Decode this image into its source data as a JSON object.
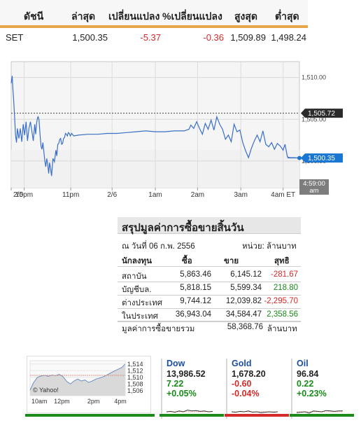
{
  "index_table": {
    "headers": [
      "ดัชนี",
      "ล่าสุด",
      "เปลี่ยนแปลง",
      "%เปลี่ยนแปลง",
      "สูงสุด",
      "ต่ำสุด"
    ],
    "row": {
      "name": "SET",
      "last": "1,500.35",
      "change": "-5.37",
      "pct_change": "-0.36",
      "high": "1,509.89",
      "low": "1,498.24"
    }
  },
  "chart_data": [
    {
      "type": "line",
      "title": "",
      "x_ticks": [
        "2/5",
        "10pm",
        "11pm",
        "2/6",
        "1am",
        "2am",
        "3am",
        "4am ET"
      ],
      "y_ticks": [
        "1,510.00",
        "1,505.00",
        "1,500.00"
      ],
      "ylim": [
        1496.8,
        1511.9
      ],
      "prev_close_label": "1,505.72",
      "last_label": "1,500.35",
      "time_label": "4:59:00 am",
      "grid": true,
      "series": [
        {
          "x": [
            0.0,
            0.2,
            0.35,
            0.5,
            0.7,
            0.9,
            1.1,
            1.3,
            1.6,
            1.9,
            2.2,
            2.5,
            2.8,
            3.1,
            3.4,
            3.7,
            4.0,
            4.3,
            4.6,
            4.9,
            5.1,
            5.3,
            5.5,
            5.6,
            5.8,
            6.0,
            6.2,
            6.4,
            6.6,
            6.8,
            7.0,
            7.2,
            7.4,
            7.6,
            7.8,
            8.0,
            8.2,
            8.4,
            8.7,
            9.0,
            9.3,
            9.5,
            9.7,
            9.9,
            10.1,
            10.3,
            10.5,
            10.7,
            10.9,
            11.1,
            11.3,
            11.5,
            11.7,
            11.9,
            12.1,
            12.3,
            12.6,
            13.0,
            14.0,
            16.0,
            18.0,
            20.0,
            22.0,
            24.0,
            26.0,
            28.0,
            30.0,
            32.0,
            34.0,
            36.0,
            37.0,
            37.4,
            38.0,
            38.6,
            39.2,
            39.8,
            40.4,
            41.0,
            41.6,
            42.2,
            42.8,
            43.4,
            44.0,
            44.6,
            45.2,
            45.8,
            46.4,
            47.0,
            47.6,
            48.2,
            48.8,
            49.4,
            50.0,
            50.6,
            51.2,
            51.8,
            52.4,
            53.0,
            53.6,
            54.2,
            54.8,
            55.4,
            56.0,
            56.6,
            57.0,
            57.5,
            58.0,
            59.0,
            60.0
          ],
          "values": [
            1509.3,
            1510.2,
            1508.6,
            1507.5,
            1505.4,
            1503.1,
            1502.2,
            1503.9,
            1502.7,
            1503.9,
            1502.3,
            1504.4,
            1503.1,
            1504.7,
            1502.4,
            1503.9,
            1504.7,
            1503.6,
            1502.4,
            1504.4,
            1503.2,
            1504.6,
            1505.2,
            1505.3,
            1504.9,
            1503.2,
            1501.8,
            1501.4,
            1502.2,
            1501.1,
            1500.0,
            1499.3,
            1500.3,
            1499.6,
            1498.5,
            1499.8,
            1499.1,
            1498.2,
            1500.3,
            1499.9,
            1501.3,
            1500.6,
            1502.0,
            1502.1,
            1502.6,
            1502.7,
            1502.0,
            1502.1,
            1502.7,
            1502.8,
            1503.3,
            1503.2,
            1503.0,
            1503.4,
            1503.3,
            1503.0,
            1503.3,
            1503.0,
            1503.1,
            1503.2,
            1503.2,
            1503.3,
            1503.3,
            1503.4,
            1503.5,
            1503.6,
            1503.5,
            1503.5,
            1503.6,
            1503.6,
            1503.8,
            1504.3,
            1503.9,
            1504.7,
            1503.9,
            1503.2,
            1504.5,
            1503.8,
            1504.9,
            1503.7,
            1505.3,
            1504.4,
            1503.8,
            1502.6,
            1503.1,
            1502.3,
            1504.4,
            1503.5,
            1503.7,
            1502.2,
            1501.2,
            1500.4,
            1501.5,
            1502.4,
            1503.1,
            1502.3,
            1503.6,
            1502.0,
            1501.7,
            1502.2,
            1501.4,
            1502.1,
            1501.8,
            1501.3,
            1502.0,
            1500.5,
            1500.4,
            1500.4,
            1500.35
          ]
        }
      ]
    },
    {
      "type": "line",
      "title": "",
      "x_ticks": [
        "10am",
        "12pm",
        "2pm",
        "4pm"
      ],
      "y_ticks": [
        "1,514",
        "1,512",
        "1,510",
        "1,508",
        "1,506"
      ],
      "ylim": [
        1504.5,
        1515
      ],
      "watermark": "© Yahoo!",
      "series": [
        {
          "x": [
            0,
            3,
            6,
            9,
            12,
            15,
            18,
            21,
            24,
            27,
            30,
            33,
            36,
            39,
            42,
            45,
            48,
            51,
            54,
            57,
            60,
            63,
            66,
            69,
            72,
            75,
            78
          ],
          "values": [
            1506.2,
            1508.5,
            1510.0,
            1510.4,
            1510.6,
            1510.3,
            1510.7,
            1510.5,
            1510.9,
            1510.2,
            1508.8,
            1508.0,
            1508.9,
            1509.5,
            1508.9,
            1509.2,
            1508.5,
            1508.9,
            1509.5,
            1509.8,
            1510.2,
            1510.7,
            1511.3,
            1511.9,
            1512.4,
            1512.9,
            1514.0
          ]
        }
      ]
    }
  ],
  "summary": {
    "title": "สรุปมูลค่าการซื้อขายสิ้นวัน",
    "date": "ณ วันที่ 06 ก.พ. 2556",
    "unit": "หน่วย: ล้านบาท",
    "headers": [
      "นักลงทุน",
      "ซื้อ",
      "ขาย",
      "สุทธิ"
    ],
    "rows": [
      {
        "investor": "สถาบัน",
        "buy": "5,863.46",
        "sell": "6,145.12",
        "net": "-281.67",
        "net_sign": "neg"
      },
      {
        "investor": "บัญชีบล.",
        "buy": "5,818.15",
        "sell": "5,599.34",
        "net": "218.80",
        "net_sign": "pos"
      },
      {
        "investor": "ต่างประเทศ",
        "buy": "9,744.12",
        "sell": "12,039.82",
        "net": "-2,295.70",
        "net_sign": "neg"
      },
      {
        "investor": "ในประเทศ",
        "buy": "36,943.04",
        "sell": "34,584.47",
        "net": "2,358.56",
        "net_sign": "pos"
      }
    ],
    "total_label": "มูลค่าการซื้อขายรวม",
    "total_value": "58,368.76",
    "total_unit": "ล้านบาท"
  },
  "markets": [
    {
      "name": "Dow",
      "price": "13,986.52",
      "change": "7.22",
      "pct": "+0.05%",
      "status": "up",
      "color": "#1a8a1a"
    },
    {
      "name": "Gold",
      "price": "1,678.20",
      "change": "-0.60",
      "pct": "-0.04%",
      "status": "down",
      "color": "#d42a2a"
    },
    {
      "name": "Oil",
      "price": "96.84",
      "change": "0.22",
      "pct": "+0.23%",
      "status": "up",
      "color": "#1a8a1a"
    }
  ],
  "colors": {
    "accent": "#e7a64a",
    "line": "#3a6fc6",
    "up": "#1a8a1a",
    "down": "#d42a2a",
    "marker": "#1976d2"
  }
}
